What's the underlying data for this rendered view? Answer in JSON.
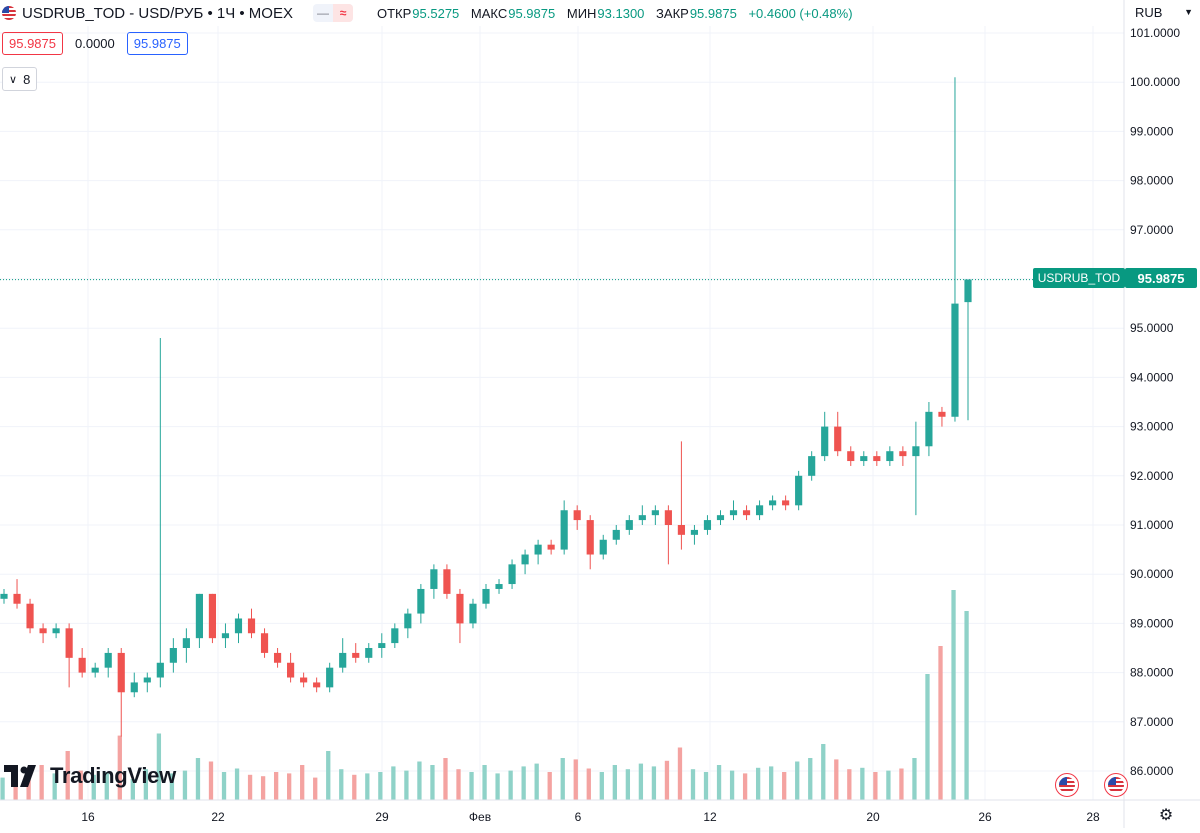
{
  "header": {
    "symbol_title": "USDRUB_TOD - USD/РУБ • 1Ч • MOEX",
    "ohlc": [
      {
        "label": "ОТКР",
        "value": "95.5275"
      },
      {
        "label": "МАКС",
        "value": "95.9875"
      },
      {
        "label": "МИН",
        "value": "93.1300"
      },
      {
        "label": "ЗАКР",
        "value": "95.9875"
      },
      {
        "label": "",
        "value": "+0.4600 (+0.48%)"
      }
    ],
    "sell_price": "95.9875",
    "spread": "0.0000",
    "buy_price": "95.9875",
    "indicator_count": "8",
    "currency": "RUB"
  },
  "price_badge": {
    "symbol": "USDRUB_TOD",
    "value": "95.9875"
  },
  "watermark": "TradingView",
  "colors": {
    "up": "#26a69a",
    "down": "#ef5350",
    "volume_up": "#8fd2c8",
    "volume_down": "#f4a3a1",
    "badge": "#089981",
    "grid": "#f0f3fa",
    "text": "#131722"
  },
  "chart_data": {
    "type": "candlestick",
    "y_axis": {
      "min": 86,
      "max": 101,
      "ticks": [
        "86.0000",
        "87.0000",
        "88.0000",
        "89.0000",
        "90.0000",
        "91.0000",
        "92.0000",
        "93.0000",
        "94.0000",
        "95.0000",
        "96.0000",
        "97.0000",
        "98.0000",
        "99.0000",
        "100.0000",
        "101.0000"
      ],
      "position": "right"
    },
    "x_axis": {
      "ticks": [
        "16",
        "22",
        "29",
        "Фев",
        "6",
        "12",
        "20",
        "26",
        "28"
      ]
    },
    "last_price": 95.9875,
    "grid": true,
    "candles": [
      [
        89.5,
        89.7,
        89.4,
        89.6
      ],
      [
        89.6,
        89.9,
        89.3,
        89.4
      ],
      [
        89.4,
        89.5,
        88.8,
        88.9
      ],
      [
        88.9,
        89.0,
        88.6,
        88.8
      ],
      [
        88.8,
        89.0,
        88.7,
        88.9
      ],
      [
        88.9,
        89.0,
        87.7,
        88.3
      ],
      [
        88.3,
        88.5,
        87.9,
        88.0
      ],
      [
        88.0,
        88.2,
        87.9,
        88.1
      ],
      [
        88.1,
        88.5,
        87.9,
        88.4
      ],
      [
        88.4,
        88.5,
        86.7,
        87.6
      ],
      [
        87.6,
        88.0,
        87.5,
        87.8
      ],
      [
        87.8,
        88.0,
        87.6,
        87.9
      ],
      [
        87.9,
        94.8,
        87.7,
        88.2
      ],
      [
        88.2,
        88.7,
        88.0,
        88.5
      ],
      [
        88.5,
        88.9,
        88.2,
        88.7
      ],
      [
        88.7,
        89.6,
        88.5,
        89.6
      ],
      [
        89.6,
        89.6,
        88.6,
        88.7
      ],
      [
        88.7,
        89.0,
        88.5,
        88.8
      ],
      [
        88.8,
        89.2,
        88.6,
        89.1
      ],
      [
        89.1,
        89.3,
        88.7,
        88.8
      ],
      [
        88.8,
        88.9,
        88.3,
        88.4
      ],
      [
        88.4,
        88.5,
        88.1,
        88.2
      ],
      [
        88.2,
        88.4,
        87.8,
        87.9
      ],
      [
        87.9,
        88.0,
        87.7,
        87.8
      ],
      [
        87.8,
        87.9,
        87.6,
        87.7
      ],
      [
        87.7,
        88.2,
        87.6,
        88.1
      ],
      [
        88.1,
        88.7,
        88.0,
        88.4
      ],
      [
        88.4,
        88.6,
        88.2,
        88.3
      ],
      [
        88.3,
        88.6,
        88.2,
        88.5
      ],
      [
        88.5,
        88.8,
        88.3,
        88.6
      ],
      [
        88.6,
        89.0,
        88.5,
        88.9
      ],
      [
        88.9,
        89.3,
        88.7,
        89.2
      ],
      [
        89.2,
        89.8,
        89.0,
        89.7
      ],
      [
        89.7,
        90.2,
        89.5,
        90.1
      ],
      [
        90.1,
        90.2,
        89.5,
        89.6
      ],
      [
        89.6,
        89.7,
        88.6,
        89.0
      ],
      [
        89.0,
        89.5,
        88.9,
        89.4
      ],
      [
        89.4,
        89.8,
        89.3,
        89.7
      ],
      [
        89.7,
        89.9,
        89.6,
        89.8
      ],
      [
        89.8,
        90.3,
        89.7,
        90.2
      ],
      [
        90.2,
        90.5,
        90.0,
        90.4
      ],
      [
        90.4,
        90.7,
        90.2,
        90.6
      ],
      [
        90.6,
        90.7,
        90.4,
        90.5
      ],
      [
        90.5,
        91.5,
        90.4,
        91.3
      ],
      [
        91.3,
        91.4,
        90.9,
        91.1
      ],
      [
        91.1,
        91.2,
        90.1,
        90.4
      ],
      [
        90.4,
        90.8,
        90.3,
        90.7
      ],
      [
        90.7,
        91.0,
        90.6,
        90.9
      ],
      [
        90.9,
        91.2,
        90.8,
        91.1
      ],
      [
        91.1,
        91.4,
        91.0,
        91.2
      ],
      [
        91.2,
        91.4,
        91.0,
        91.3
      ],
      [
        91.3,
        91.4,
        90.2,
        91.0
      ],
      [
        91.0,
        92.7,
        90.5,
        90.8
      ],
      [
        90.8,
        91.0,
        90.6,
        90.9
      ],
      [
        90.9,
        91.2,
        90.8,
        91.1
      ],
      [
        91.1,
        91.3,
        91.0,
        91.2
      ],
      [
        91.2,
        91.5,
        91.1,
        91.3
      ],
      [
        91.3,
        91.4,
        91.1,
        91.2
      ],
      [
        91.2,
        91.5,
        91.1,
        91.4
      ],
      [
        91.4,
        91.6,
        91.3,
        91.5
      ],
      [
        91.5,
        91.6,
        91.3,
        91.4
      ],
      [
        91.4,
        92.1,
        91.3,
        92.0
      ],
      [
        92.0,
        92.5,
        91.9,
        92.4
      ],
      [
        92.4,
        93.3,
        92.3,
        93.0
      ],
      [
        93.0,
        93.3,
        92.4,
        92.5
      ],
      [
        92.5,
        92.6,
        92.2,
        92.3
      ],
      [
        92.3,
        92.5,
        92.2,
        92.4
      ],
      [
        92.4,
        92.5,
        92.2,
        92.3
      ],
      [
        92.3,
        92.6,
        92.2,
        92.5
      ],
      [
        92.5,
        92.6,
        92.2,
        92.4
      ],
      [
        92.4,
        93.1,
        91.2,
        92.6
      ],
      [
        92.6,
        93.5,
        92.4,
        93.3
      ],
      [
        93.3,
        93.4,
        93.0,
        93.2
      ],
      [
        93.2,
        100.1,
        93.1,
        95.5
      ],
      [
        95.53,
        95.99,
        93.13,
        95.99
      ]
    ],
    "volumes": [
      0.32,
      0.45,
      0.3,
      0.5,
      0.38,
      0.7,
      0.42,
      0.36,
      0.4,
      0.92,
      0.3,
      0.44,
      0.95,
      0.38,
      0.42,
      0.6,
      0.55,
      0.4,
      0.45,
      0.36,
      0.34,
      0.4,
      0.38,
      0.5,
      0.32,
      0.7,
      0.44,
      0.36,
      0.38,
      0.4,
      0.48,
      0.42,
      0.55,
      0.5,
      0.6,
      0.44,
      0.4,
      0.5,
      0.38,
      0.42,
      0.48,
      0.52,
      0.4,
      0.6,
      0.58,
      0.45,
      0.4,
      0.5,
      0.44,
      0.52,
      0.48,
      0.56,
      0.75,
      0.44,
      0.4,
      0.5,
      0.42,
      0.38,
      0.46,
      0.48,
      0.4,
      0.55,
      0.6,
      0.8,
      0.58,
      0.44,
      0.46,
      0.4,
      0.42,
      0.45,
      0.6,
      1.8,
      2.2,
      3.0,
      2.7
    ]
  }
}
